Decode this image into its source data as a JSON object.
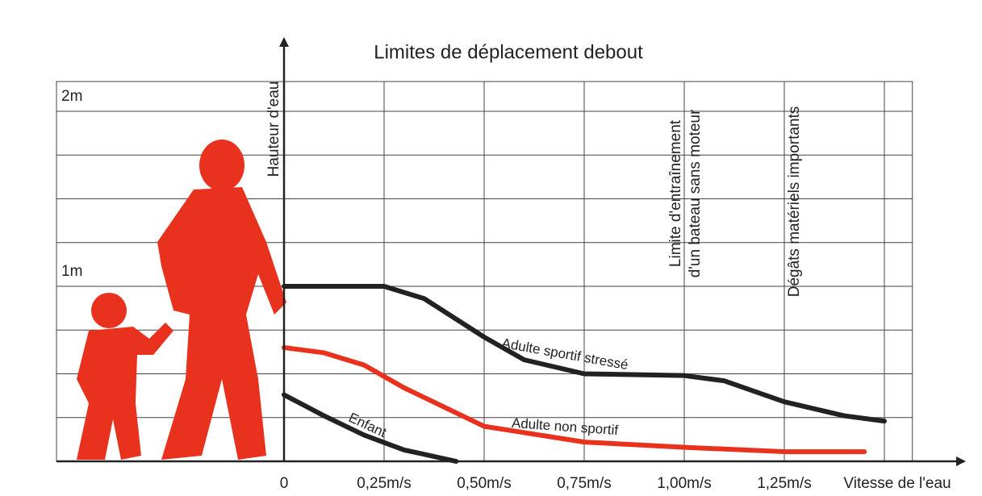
{
  "chart_data": {
    "type": "line",
    "title": "Limites de déplacement debout",
    "y_label": "Hauteur d'eau",
    "x_label": "Vitesse de l'eau",
    "xlim": [
      0,
      1.57
    ],
    "ylim": [
      0,
      2.17
    ],
    "xticks": [
      0,
      {
        "value": 0.25,
        "label": "0,25m/s"
      },
      {
        "value": 0.5,
        "label": "0,50m/s"
      },
      {
        "value": 0.75,
        "label": "0,75m/s"
      },
      {
        "value": 1,
        "label": "1,00m/s"
      },
      {
        "value": 1.25,
        "label": "1,25m/s"
      }
    ],
    "xgrid": [
      0.25,
      0.5,
      0.75,
      1,
      1.25,
      1.5
    ],
    "yticks": [
      {
        "value": 1,
        "label": "1m"
      },
      {
        "value": 2,
        "label": "2m"
      }
    ],
    "ygrid": [
      0.25,
      0.5,
      0.75,
      1,
      1.25,
      1.5,
      1.75,
      2
    ],
    "grid": true,
    "series": [
      {
        "name": "Adulte sportif stressé",
        "color": "#222222",
        "x": [
          0,
          0.1,
          0.25,
          0.35,
          0.5,
          0.6,
          0.75,
          1.0,
          1.1,
          1.25,
          1.4,
          1.5
        ],
        "values": [
          1.0,
          1.0,
          1.0,
          0.93,
          0.71,
          0.58,
          0.5,
          0.49,
          0.46,
          0.34,
          0.26,
          0.23
        ]
      },
      {
        "name": "Adulte non sportif",
        "color": "#e8321e",
        "x": [
          0,
          0.1,
          0.2,
          0.3,
          0.4,
          0.5,
          0.75,
          1.0,
          1.25,
          1.45
        ],
        "values": [
          0.65,
          0.62,
          0.55,
          0.42,
          0.31,
          0.2,
          0.11,
          0.08,
          0.055,
          0.055
        ]
      },
      {
        "name": "Enfant",
        "color": "#222222",
        "x": [
          0,
          0.1,
          0.2,
          0.3,
          0.43
        ],
        "values": [
          0.38,
          0.26,
          0.15,
          0.065,
          0
        ]
      }
    ],
    "annotations": [
      {
        "lines": [
          "Limite d'entraînement",
          "d'un bateau sans moteur"
        ]
      },
      {
        "lines": [
          "Dégâts matériels importants"
        ]
      }
    ]
  }
}
